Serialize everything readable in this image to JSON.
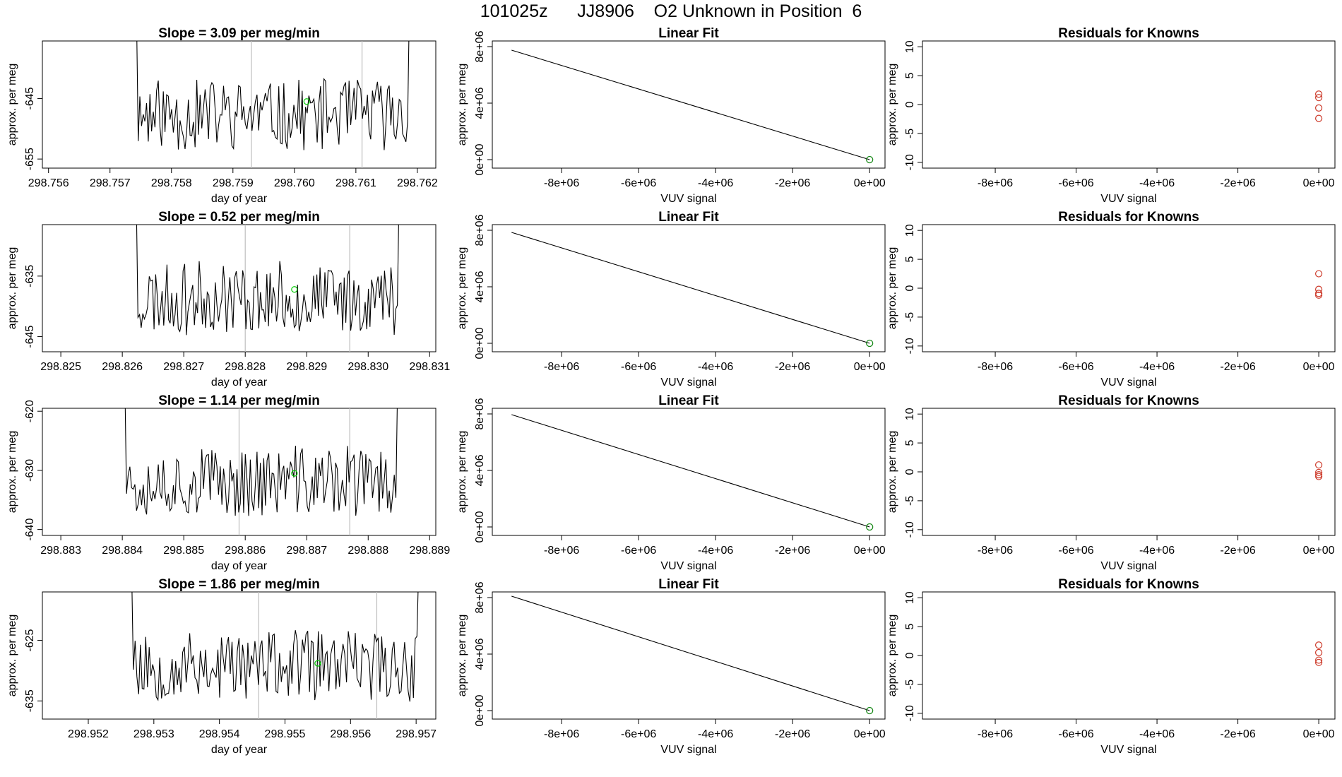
{
  "title": "101025z      JJ8906    O2 Unknown in Position  6",
  "colors": {
    "line": "#000000",
    "vline": "#bebebe",
    "green": "#00cc00",
    "darkgreen": "#1a8a1a",
    "red": "#cd3a2a"
  },
  "chart_data": [
    {
      "type": "line",
      "panel": "time-series",
      "title": "Slope =  3.09  per meg/min",
      "xlabel": "day of year",
      "ylabel": "approx. per meg",
      "xlim": [
        298.7559,
        298.7623
      ],
      "ylim": [
        -656.5,
        -635.5
      ],
      "xticks": [
        298.756,
        298.757,
        298.758,
        298.759,
        298.76,
        298.761,
        298.762
      ],
      "xtick_labels": [
        "298.756",
        "298.757",
        "298.758",
        "298.759",
        "298.760",
        "298.761",
        "298.762"
      ],
      "yticks": [
        -645,
        -655
      ],
      "ytick_labels": [
        "-645",
        "-655"
      ],
      "vlines": [
        298.7593,
        298.7611
      ],
      "marker": {
        "x": 298.7602,
        "y": -645.5
      },
      "series_start": 298.75735,
      "series_end": 298.76195,
      "seed": 11
    },
    {
      "type": "line",
      "panel": "time-series",
      "title": "Slope =  0.52  per meg/min",
      "xlabel": "day of year",
      "ylabel": "approx. per meg",
      "xlim": [
        298.8247,
        298.8311
      ],
      "ylim": [
        -647.5,
        -626.5
      ],
      "xticks": [
        298.825,
        298.826,
        298.827,
        298.828,
        298.829,
        298.83,
        298.831
      ],
      "xtick_labels": [
        "298.825",
        "298.826",
        "298.827",
        "298.828",
        "298.829",
        "298.830",
        "298.831"
      ],
      "yticks": [
        -635,
        -645
      ],
      "ytick_labels": [
        "-635",
        "-645"
      ],
      "vlines": [
        298.828,
        298.8297
      ],
      "marker": {
        "x": 298.8288,
        "y": -637.2
      },
      "series_start": 298.82615,
      "series_end": 298.83058,
      "seed": 23
    },
    {
      "type": "line",
      "panel": "time-series",
      "title": "Slope =  1.14  per meg/min",
      "xlabel": "day of year",
      "ylabel": "approx. per meg",
      "xlim": [
        298.8827,
        298.8891
      ],
      "ylim": [
        -641,
        -619.5
      ],
      "xticks": [
        298.883,
        298.884,
        298.885,
        298.886,
        298.887,
        298.888,
        298.889
      ],
      "xtick_labels": [
        "298.883",
        "298.884",
        "298.885",
        "298.886",
        "298.887",
        "298.888",
        "298.889"
      ],
      "yticks": [
        -620,
        -630,
        -640
      ],
      "ytick_labels": [
        "-620",
        "-630",
        "-640"
      ],
      "vlines": [
        298.8859,
        298.8877
      ],
      "marker": {
        "x": 298.8868,
        "y": -630.5
      },
      "series_start": 298.88396,
      "series_end": 298.88856,
      "seed": 37
    },
    {
      "type": "line",
      "panel": "time-series",
      "title": "Slope =  1.86  per meg/min",
      "xlabel": "day of year",
      "ylabel": "approx. per meg",
      "xlim": [
        298.9513,
        298.9573
      ],
      "ylim": [
        -638,
        -617
      ],
      "xticks": [
        298.952,
        298.953,
        298.954,
        298.955,
        298.956,
        298.957
      ],
      "xtick_labels": [
        "298.952",
        "298.953",
        "298.954",
        "298.955",
        "298.956",
        "298.957"
      ],
      "yticks": [
        -625,
        -635
      ],
      "ytick_labels": [
        "-625",
        "-635"
      ],
      "vlines": [
        298.9546,
        298.9564
      ],
      "marker": {
        "x": 298.9555,
        "y": -628.8
      },
      "series_start": 298.95258,
      "series_end": 298.95712,
      "seed": 53
    },
    {
      "type": "line",
      "panel": "linear-fit",
      "title": "Linear Fit",
      "xlabel": "VUV signal",
      "ylabel": "approx. per meg",
      "xlim": [
        -9800000.0,
        400000.0
      ],
      "ylim": [
        -600000.0,
        8400000.0
      ],
      "xticks": [
        -8000000.0,
        -6000000.0,
        -4000000.0,
        -2000000.0,
        0
      ],
      "xtick_labels": [
        "-8e+06",
        "-6e+06",
        "-4e+06",
        "-2e+06",
        "0e+00"
      ],
      "yticks": [
        0,
        4000000.0,
        8000000.0
      ],
      "ytick_labels": [
        "0e+00",
        "4e+06",
        "8e+06"
      ],
      "line": {
        "x": [
          -9300000.0,
          0
        ],
        "y": [
          7750000.0,
          0
        ]
      },
      "points": [
        {
          "x": 0,
          "y": 0
        }
      ]
    },
    {
      "type": "line",
      "panel": "linear-fit",
      "title": "Linear Fit",
      "xlabel": "VUV signal",
      "ylabel": "approx. per meg",
      "xlim": [
        -9800000.0,
        400000.0
      ],
      "ylim": [
        -600000.0,
        8400000.0
      ],
      "xticks": [
        -8000000.0,
        -6000000.0,
        -4000000.0,
        -2000000.0,
        0
      ],
      "xtick_labels": [
        "-8e+06",
        "-6e+06",
        "-4e+06",
        "-2e+06",
        "0e+00"
      ],
      "yticks": [
        0,
        4000000.0,
        8000000.0
      ],
      "ytick_labels": [
        "0e+00",
        "4e+06",
        "8e+06"
      ],
      "line": {
        "x": [
          -9300000.0,
          0
        ],
        "y": [
          7850000.0,
          0
        ]
      },
      "points": [
        {
          "x": 0,
          "y": 0
        }
      ]
    },
    {
      "type": "line",
      "panel": "linear-fit",
      "title": "Linear Fit",
      "xlabel": "VUV signal",
      "ylabel": "approx. per meg",
      "xlim": [
        -9800000.0,
        400000.0
      ],
      "ylim": [
        -600000.0,
        8400000.0
      ],
      "xticks": [
        -8000000.0,
        -6000000.0,
        -4000000.0,
        -2000000.0,
        0
      ],
      "xtick_labels": [
        "-8e+06",
        "-6e+06",
        "-4e+06",
        "-2e+06",
        "0e+00"
      ],
      "yticks": [
        0,
        4000000.0,
        8000000.0
      ],
      "ytick_labels": [
        "0e+00",
        "4e+06",
        "8e+06"
      ],
      "line": {
        "x": [
          -9300000.0,
          0
        ],
        "y": [
          7950000.0,
          0
        ]
      },
      "points": [
        {
          "x": 0,
          "y": 0
        }
      ]
    },
    {
      "type": "line",
      "panel": "linear-fit",
      "title": "Linear Fit",
      "xlabel": "VUV signal",
      "ylabel": "approx. per meg",
      "xlim": [
        -9800000.0,
        400000.0
      ],
      "ylim": [
        -600000.0,
        8400000.0
      ],
      "xticks": [
        -8000000.0,
        -6000000.0,
        -4000000.0,
        -2000000.0,
        0
      ],
      "xtick_labels": [
        "-8e+06",
        "-6e+06",
        "-4e+06",
        "-2e+06",
        "0e+00"
      ],
      "yticks": [
        0,
        4000000.0,
        8000000.0
      ],
      "ytick_labels": [
        "0e+00",
        "4e+06",
        "8e+06"
      ],
      "line": {
        "x": [
          -9300000.0,
          0
        ],
        "y": [
          8100000.0,
          0
        ]
      },
      "points": [
        {
          "x": 0,
          "y": 0
        }
      ]
    },
    {
      "type": "scatter",
      "panel": "residuals",
      "title": "Residuals for Knowns",
      "xlabel": "VUV signal",
      "ylabel": "approx. per meg",
      "xlim": [
        -9800000.0,
        400000.0
      ],
      "ylim": [
        -11,
        11
      ],
      "xticks": [
        -8000000.0,
        -6000000.0,
        -4000000.0,
        -2000000.0,
        0
      ],
      "xtick_labels": [
        "-8e+06",
        "-6e+06",
        "-4e+06",
        "-2e+06",
        "0e+00"
      ],
      "yticks": [
        -10,
        -5,
        0,
        5,
        10
      ],
      "ytick_labels": [
        "-10",
        "-5",
        "0",
        "5",
        "10"
      ],
      "points": [
        {
          "x": 0,
          "y": 1.8
        },
        {
          "x": 0,
          "y": 1.2
        },
        {
          "x": 0,
          "y": -0.6
        },
        {
          "x": 0,
          "y": -2.4
        }
      ]
    },
    {
      "type": "scatter",
      "panel": "residuals",
      "title": "Residuals for Knowns",
      "xlabel": "VUV signal",
      "ylabel": "approx. per meg",
      "xlim": [
        -9800000.0,
        400000.0
      ],
      "ylim": [
        -11,
        11
      ],
      "xticks": [
        -8000000.0,
        -6000000.0,
        -4000000.0,
        -2000000.0,
        0
      ],
      "xtick_labels": [
        "-8e+06",
        "-6e+06",
        "-4e+06",
        "-2e+06",
        "0e+00"
      ],
      "yticks": [
        -10,
        -5,
        0,
        5,
        10
      ],
      "ytick_labels": [
        "-10",
        "-5",
        "0",
        "5",
        "10"
      ],
      "points": [
        {
          "x": 0,
          "y": 2.5
        },
        {
          "x": 0,
          "y": -0.2
        },
        {
          "x": 0,
          "y": -0.9
        },
        {
          "x": 0,
          "y": -1.2
        }
      ]
    },
    {
      "type": "scatter",
      "panel": "residuals",
      "title": "Residuals for Knowns",
      "xlabel": "VUV signal",
      "ylabel": "approx. per meg",
      "xlim": [
        -9800000.0,
        400000.0
      ],
      "ylim": [
        -11,
        11
      ],
      "xticks": [
        -8000000.0,
        -6000000.0,
        -4000000.0,
        -2000000.0,
        0
      ],
      "xtick_labels": [
        "-8e+06",
        "-6e+06",
        "-4e+06",
        "-2e+06",
        "0e+00"
      ],
      "yticks": [
        -10,
        -5,
        0,
        5,
        10
      ],
      "ytick_labels": [
        "-10",
        "-5",
        "0",
        "5",
        "10"
      ],
      "points": [
        {
          "x": 0,
          "y": 1.2
        },
        {
          "x": 0,
          "y": -0.1
        },
        {
          "x": 0,
          "y": -0.5
        },
        {
          "x": 0,
          "y": -0.8
        }
      ]
    },
    {
      "type": "scatter",
      "panel": "residuals",
      "title": "Residuals for Knowns",
      "xlabel": "VUV signal",
      "ylabel": "approx. per meg",
      "xlim": [
        -9800000.0,
        400000.0
      ],
      "ylim": [
        -11,
        11
      ],
      "xticks": [
        -8000000.0,
        -6000000.0,
        -4000000.0,
        -2000000.0,
        0
      ],
      "xtick_labels": [
        "-8e+06",
        "-6e+06",
        "-4e+06",
        "-2e+06",
        "0e+00"
      ],
      "yticks": [
        -10,
        -5,
        0,
        5,
        10
      ],
      "ytick_labels": [
        "-10",
        "-5",
        "0",
        "5",
        "10"
      ],
      "points": [
        {
          "x": 0,
          "y": 1.8
        },
        {
          "x": 0,
          "y": 0.5
        },
        {
          "x": 0,
          "y": -0.8
        },
        {
          "x": 0,
          "y": -1.2
        }
      ]
    }
  ]
}
